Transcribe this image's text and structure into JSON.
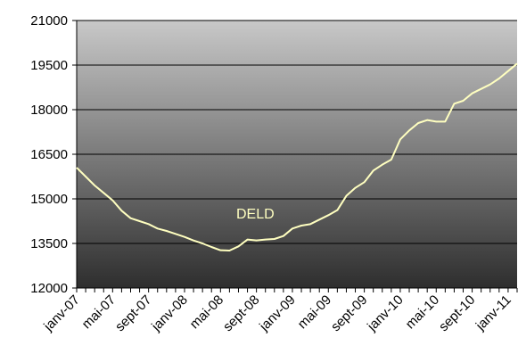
{
  "chart_data": {
    "type": "line",
    "title": "",
    "xlabel": "",
    "ylabel": "",
    "ylim": [
      12000,
      21000
    ],
    "yticks": [
      12000,
      13500,
      15000,
      16500,
      18000,
      19500,
      21000
    ],
    "xtick_labels": [
      "janv-07",
      "mai-07",
      "sept-07",
      "janv-08",
      "mai-08",
      "sept-08",
      "janv-09",
      "mai-09",
      "sept-09",
      "janv-10",
      "mai-10",
      "sept-10",
      "janv-11"
    ],
    "grid": true,
    "colors": {
      "line": "#ffffc0",
      "plot_bg_top": "#c8c8c8",
      "plot_bg_bottom": "#2e2e2e",
      "gridline": "#000000"
    },
    "series": [
      {
        "name": "DELD",
        "x": [
          "janv-07",
          "févr-07",
          "mars-07",
          "avr-07",
          "mai-07",
          "juin-07",
          "juil-07",
          "août-07",
          "sept-07",
          "oct-07",
          "nov-07",
          "déc-07",
          "janv-08",
          "févr-08",
          "mars-08",
          "avr-08",
          "mai-08",
          "juin-08",
          "juil-08",
          "août-08",
          "sept-08",
          "oct-08",
          "nov-08",
          "déc-08",
          "janv-09",
          "févr-09",
          "mars-09",
          "avr-09",
          "mai-09",
          "juin-09",
          "juil-09",
          "août-09",
          "sept-09",
          "oct-09",
          "nov-09",
          "déc-09",
          "janv-10",
          "févr-10",
          "mars-10",
          "avr-10",
          "mai-10",
          "juin-10",
          "juil-10",
          "août-10",
          "sept-10",
          "oct-10",
          "nov-10",
          "déc-10",
          "janv-11",
          "févr-11"
        ],
        "values": [
          16050,
          15750,
          15450,
          15200,
          14950,
          14600,
          14350,
          14250,
          14150,
          14000,
          13920,
          13820,
          13720,
          13600,
          13500,
          13380,
          13270,
          13260,
          13400,
          13630,
          13600,
          13630,
          13650,
          13750,
          14000,
          14100,
          14150,
          14300,
          14450,
          14620,
          15100,
          15370,
          15560,
          15950,
          16150,
          16320,
          17000,
          17300,
          17550,
          17650,
          17600,
          17600,
          18200,
          18300,
          18550,
          18700,
          18850,
          19050,
          19300,
          19550
        ]
      }
    ]
  }
}
